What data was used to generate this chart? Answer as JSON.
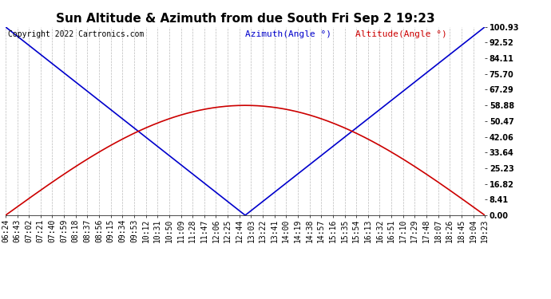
{
  "title": "Sun Altitude & Azimuth from due South Fri Sep 2 19:23",
  "copyright": "Copyright 2022 Cartronics.com",
  "legend_azimuth": "Azimuth(Angle °)",
  "legend_altitude": "Altitude(Angle °)",
  "y_ticks": [
    0.0,
    8.41,
    16.82,
    25.23,
    33.64,
    42.06,
    50.47,
    58.88,
    67.29,
    75.7,
    84.11,
    92.52,
    100.93
  ],
  "x_labels": [
    "06:24",
    "06:43",
    "07:02",
    "07:21",
    "07:40",
    "07:59",
    "08:18",
    "08:37",
    "08:56",
    "09:15",
    "09:34",
    "09:53",
    "10:12",
    "10:31",
    "10:50",
    "11:09",
    "11:28",
    "11:47",
    "12:06",
    "12:25",
    "12:44",
    "13:03",
    "13:22",
    "13:41",
    "14:00",
    "14:19",
    "14:38",
    "14:57",
    "15:16",
    "15:35",
    "15:54",
    "16:13",
    "16:32",
    "16:51",
    "17:10",
    "17:29",
    "17:48",
    "18:07",
    "18:26",
    "18:45",
    "19:04",
    "19:23"
  ],
  "azimuth_color": "#0000cc",
  "altitude_color": "#cc0000",
  "grid_color": "#bbbbbb",
  "bg_color": "#ffffff",
  "title_fontsize": 11,
  "copyright_fontsize": 7,
  "legend_fontsize": 8,
  "tick_fontsize": 7,
  "y_max": 100.93,
  "y_min": 0.0,
  "noon_idx": 20.5,
  "altitude_peak": 58.88,
  "n_points": 42
}
